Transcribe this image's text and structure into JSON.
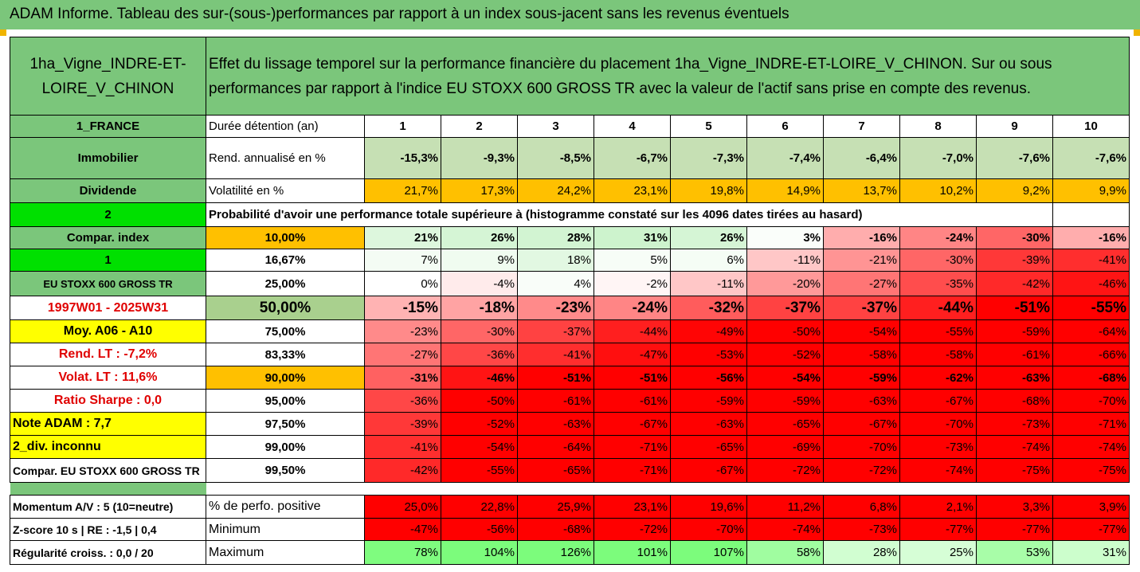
{
  "banner_title": "ADAM Informe. Tableau des sur-(sous-)performances par rapport à un index sous-jacent sans les revenus éventuels",
  "asset_name": "1ha_Vigne_INDRE-ET-LOIRE_V_CHINON",
  "description": "Effet du lissage temporel sur la performance financière du placement 1ha_Vigne_INDRE-ET-LOIRE_V_CHINON. Sur ou sous performances par rapport à l'indice EU STOXX 600 GROSS TR avec la valeur de l'actif sans prise en compte des revenus.",
  "country": "1_FRANCE",
  "duration_label": "Durée détention (an)",
  "years": [
    "1",
    "2",
    "3",
    "4",
    "5",
    "6",
    "7",
    "8",
    "9",
    "10"
  ],
  "category": "Immobilier",
  "rend_label": "Rend. annualisé en %",
  "rend_values": [
    "-15,3%",
    "-9,3%",
    "-8,5%",
    "-6,7%",
    "-7,3%",
    "-7,4%",
    "-6,4%",
    "-7,0%",
    "-7,6%",
    "-7,6%"
  ],
  "dividend": "Dividende",
  "vol_label": "Volatilité en %",
  "vol_values": [
    "21,7%",
    "17,3%",
    "24,2%",
    "23,1%",
    "19,8%",
    "14,9%",
    "13,7%",
    "10,2%",
    "9,2%",
    "9,9%"
  ],
  "two": "2",
  "prob_text": "Probabilité d'avoir une performance totale supérieure à (histogramme constaté sur les 4096 dates tirées au hasard)",
  "left_labels": [
    "Compar. index",
    "1",
    "EU STOXX 600 GROSS TR",
    "1997W01 - 2025W31",
    "Moy. A06 - A10",
    "Rend. LT :   -7,2%",
    "Volat. LT :   11,6%",
    "Ratio Sharpe :    0,0",
    "Note ADAM : 7,7",
    "2_div. inconnu",
    "Compar. EU STOXX 600 GROSS TR"
  ],
  "percentiles": [
    "10,00%",
    "16,67%",
    "25,00%",
    "50,00%",
    "75,00%",
    "83,33%",
    "90,00%",
    "95,00%",
    "97,50%",
    "99,00%",
    "99,50%"
  ],
  "matrix": [
    [
      "21%",
      "26%",
      "28%",
      "31%",
      "26%",
      "3%",
      "-16%",
      "-24%",
      "-30%",
      "-16%"
    ],
    [
      "7%",
      "9%",
      "18%",
      "5%",
      "6%",
      "-11%",
      "-21%",
      "-30%",
      "-39%",
      "-41%"
    ],
    [
      "0%",
      "-4%",
      "4%",
      "-2%",
      "-11%",
      "-20%",
      "-27%",
      "-35%",
      "-42%",
      "-46%"
    ],
    [
      "-15%",
      "-18%",
      "-23%",
      "-24%",
      "-32%",
      "-37%",
      "-37%",
      "-44%",
      "-51%",
      "-55%"
    ],
    [
      "-23%",
      "-30%",
      "-37%",
      "-44%",
      "-49%",
      "-50%",
      "-54%",
      "-55%",
      "-59%",
      "-64%"
    ],
    [
      "-27%",
      "-36%",
      "-41%",
      "-47%",
      "-53%",
      "-52%",
      "-58%",
      "-58%",
      "-61%",
      "-66%"
    ],
    [
      "-31%",
      "-46%",
      "-51%",
      "-51%",
      "-56%",
      "-54%",
      "-59%",
      "-62%",
      "-63%",
      "-68%"
    ],
    [
      "-36%",
      "-50%",
      "-61%",
      "-61%",
      "-59%",
      "-59%",
      "-63%",
      "-67%",
      "-68%",
      "-70%"
    ],
    [
      "-39%",
      "-52%",
      "-63%",
      "-67%",
      "-63%",
      "-65%",
      "-67%",
      "-70%",
      "-73%",
      "-71%"
    ],
    [
      "-41%",
      "-54%",
      "-64%",
      "-71%",
      "-65%",
      "-69%",
      "-70%",
      "-73%",
      "-74%",
      "-74%"
    ],
    [
      "-42%",
      "-55%",
      "-65%",
      "-71%",
      "-67%",
      "-72%",
      "-72%",
      "-74%",
      "-75%",
      "-75%"
    ]
  ],
  "momentum_label": "Momentum A/V : 5 (10=neutre)",
  "pos_label": "% de perfo. positive",
  "pos_values": [
    "25,0%",
    "22,8%",
    "25,9%",
    "23,1%",
    "19,6%",
    "11,2%",
    "6,8%",
    "2,1%",
    "3,3%",
    "3,9%"
  ],
  "zscore_label": "Z-score 10 s  |  RE : -1,5  |  0,4",
  "min_label": "Minimum",
  "min_values": [
    "-47%",
    "-56%",
    "-68%",
    "-72%",
    "-70%",
    "-74%",
    "-73%",
    "-77%",
    "-77%",
    "-77%"
  ],
  "reg_label": "Régularité croiss. : 0,0 / 20",
  "max_label": "Maximum",
  "max_values": [
    "78%",
    "104%",
    "126%",
    "101%",
    "107%",
    "58%",
    "28%",
    "25%",
    "53%",
    "31%"
  ],
  "colors": {
    "header_green": "#7bc67b",
    "light_green": "#a9d08e",
    "yellow": "#ffff00",
    "orange": "#ffc000",
    "bright_green": "#00e000",
    "red": "#ff0000"
  }
}
